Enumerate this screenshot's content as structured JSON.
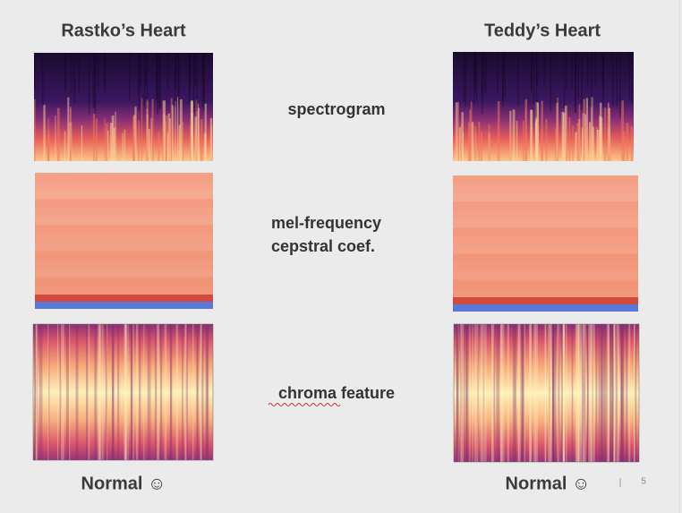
{
  "slide": {
    "columns": [
      "Rastko’s Heart",
      "Teddy’s Heart"
    ],
    "rows": [
      {
        "label": [
          "spectrogram"
        ]
      },
      {
        "label": [
          "mel-frequency",
          "cepstral coef."
        ]
      },
      {
        "label": [
          "chroma feature"
        ]
      }
    ],
    "captions": [
      "Normal ☺",
      "Normal ☺"
    ],
    "page_number": "5"
  }
}
